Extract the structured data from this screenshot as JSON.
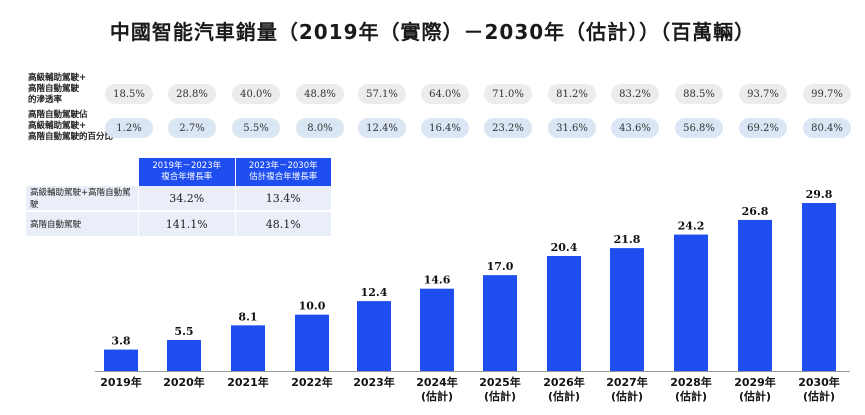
{
  "title": "中國智能汽車銷量（2019年（實際）－2030年（估計））（百萬輛）",
  "metrics": {
    "row1_label": "高級輔助駕駛+\n高階自動駕駛\n的滲透率",
    "row1_values": [
      "18.5%",
      "28.8%",
      "40.0%",
      "48.8%",
      "57.1%",
      "64.0%",
      "71.0%",
      "81.2%",
      "83.2%",
      "88.5%",
      "93.7%",
      "99.7%"
    ],
    "row2_label": "高階自動駕駛佔\n高級輔助駕駛+\n高階自動駕駛的百分比",
    "row2_values": [
      "1.2%",
      "2.7%",
      "5.5%",
      "8.0%",
      "12.4%",
      "16.4%",
      "23.2%",
      "31.6%",
      "43.6%",
      "56.8%",
      "69.2%",
      "80.4%"
    ]
  },
  "cagr_table": {
    "header_blank": "",
    "col1_header": "2019年－2023年\n複合年增長率",
    "col2_header": "2023年－2030年\n估計複合年增長率",
    "rows": [
      {
        "label": "高級輔助駕駛+高階自動駕駛",
        "v1": "34.2%",
        "v2": "13.4%"
      },
      {
        "label": "高階自動駕駛",
        "v1": "141.1%",
        "v2": "48.1%"
      }
    ]
  },
  "chart_data": {
    "type": "bar",
    "title": "中國智能汽車銷量（2019年（實際）－2030年（估計））（百萬輛）",
    "categories": [
      "2019年",
      "2020年",
      "2021年",
      "2022年",
      "2023年",
      "2024年\n(估計)",
      "2025年\n(估計)",
      "2026年\n(估計)",
      "2027年\n(估計)",
      "2028年\n(估計)",
      "2029年\n(估計)",
      "2030年\n(估計)"
    ],
    "series": [
      {
        "values": [
          3.8,
          5.5,
          8.1,
          10.0,
          12.4,
          14.6,
          17.0,
          20.4,
          21.8,
          24.2,
          26.8,
          29.8
        ]
      }
    ],
    "value_labels": [
      "3.8",
      "5.5",
      "8.1",
      "10.0",
      "12.4",
      "14.6",
      "17.0",
      "20.4",
      "21.8",
      "24.2",
      "26.8",
      "29.8"
    ],
    "ylim": [
      0,
      29.8
    ],
    "grid": false,
    "bar_color": "#1f4ef0"
  }
}
